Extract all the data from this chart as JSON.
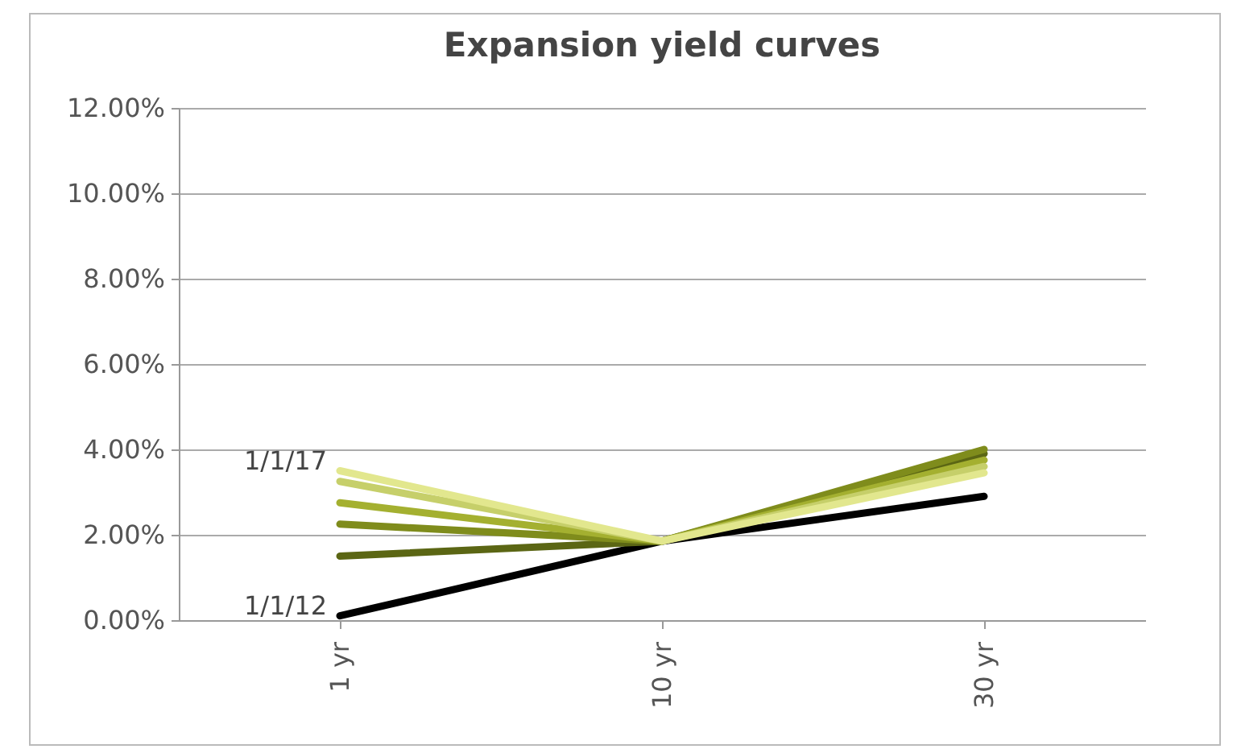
{
  "chart_data": {
    "type": "line",
    "title": "Expansion yield curves",
    "categories": [
      "1 yr",
      "10 yr",
      "30 yr"
    ],
    "series": [
      {
        "name": "1/1/12",
        "color": "#000000",
        "values": [
          0.1,
          1.85,
          2.9
        ]
      },
      {
        "color": "#5b6614",
        "values": [
          1.5,
          1.85,
          3.9
        ]
      },
      {
        "color": "#7f8c1c",
        "values": [
          2.25,
          1.85,
          4.0
        ]
      },
      {
        "color": "#a4b030",
        "values": [
          2.75,
          1.85,
          3.75
        ]
      },
      {
        "color": "#c6cf6a",
        "values": [
          3.25,
          1.85,
          3.6
        ]
      },
      {
        "name": "1/1/17",
        "color": "#e2e78e",
        "values": [
          3.5,
          1.85,
          3.45
        ]
      }
    ],
    "ylim": [
      0,
      12
    ],
    "yticks": [
      {
        "value": 0,
        "label": "0.00%"
      },
      {
        "value": 2,
        "label": "2.00%"
      },
      {
        "value": 4,
        "label": "4.00%"
      },
      {
        "value": 6,
        "label": "6.00%"
      },
      {
        "value": 8,
        "label": "8.00%"
      },
      {
        "value": 10,
        "label": "10.00%"
      },
      {
        "value": 12,
        "label": "12.00%"
      }
    ],
    "grid": "y",
    "legend": false
  }
}
